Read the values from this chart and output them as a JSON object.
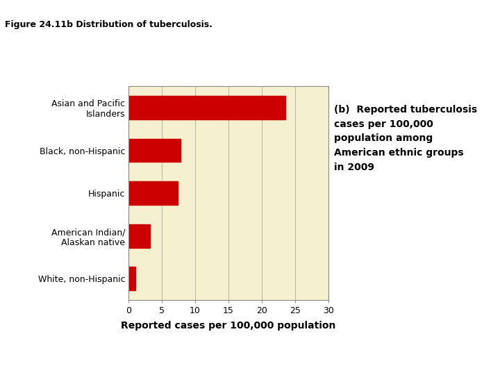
{
  "categories": [
    "White, non-Hispanic",
    "American Indian/\nAlaskan native",
    "Hispanic",
    "Black, non-Hispanic",
    "Asian and Pacific\nIslanders"
  ],
  "values": [
    1.0,
    3.2,
    7.4,
    7.8,
    23.5
  ],
  "bar_color": "#cc0000",
  "bar_bg_color": "#f5f0d0",
  "xlim": [
    0,
    30
  ],
  "xticks": [
    0,
    5,
    10,
    15,
    20,
    25,
    30
  ],
  "xlabel": "Reported cases per 100,000 population",
  "xlabel_fontsize": 10,
  "annotation_text": "(b)  Reported tuberculosis\ncases per 100,000\npopulation among\nAmerican ethnic groups\nin 2009",
  "figure_title": "Figure 24.11b Distribution of tuberculosis.",
  "title_stripe_color": "#3333aa",
  "grid_color": "#bbbbaa",
  "tick_label_fontsize": 9,
  "annotation_fontsize": 10,
  "annotation_fontweight": "bold"
}
